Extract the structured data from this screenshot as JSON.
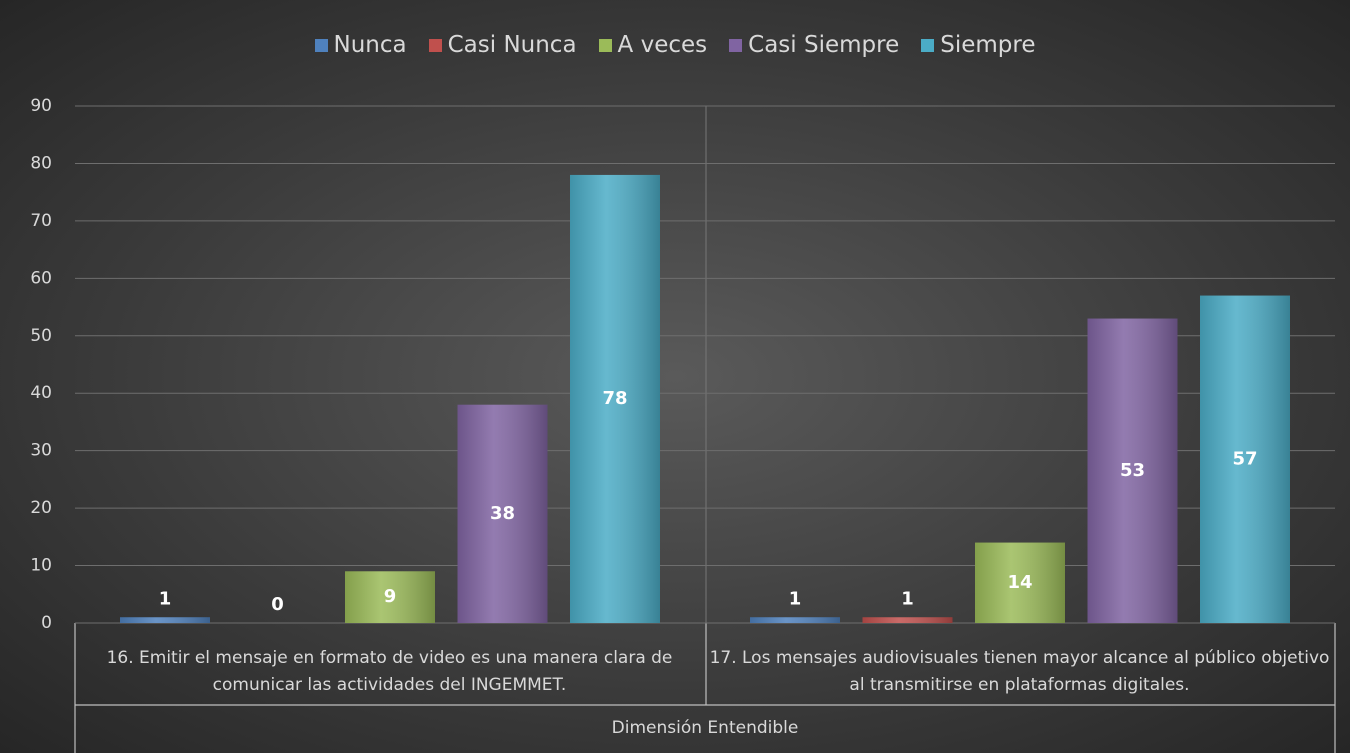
{
  "chart_data": {
    "type": "bar",
    "categories": [
      "16. Emitir el mensaje en formato de video es una manera clara de comunicar las actividades del INGEMMET.",
      "17. Los mensajes audiovisuales tienen mayor alcance al público objetivo al transmitirse en plataformas digitales."
    ],
    "x_label": "Dimensión Entendible",
    "series": [
      {
        "name": "Nunca",
        "color": "#4f81bd",
        "values": [
          1,
          1
        ]
      },
      {
        "name": "Casi Nunca",
        "color": "#c0504d",
        "values": [
          0,
          1
        ]
      },
      {
        "name": "A veces",
        "color": "#9bbb59",
        "values": [
          9,
          14
        ]
      },
      {
        "name": "Casi Siempre",
        "color": "#8064a2",
        "values": [
          38,
          53
        ]
      },
      {
        "name": "Siempre",
        "color": "#4bacc6",
        "values": [
          78,
          57
        ]
      }
    ],
    "ylim": [
      0,
      90
    ],
    "yticks": [
      0,
      10,
      20,
      30,
      40,
      50,
      60,
      70,
      80,
      90
    ],
    "grid": true,
    "legend": "top"
  }
}
